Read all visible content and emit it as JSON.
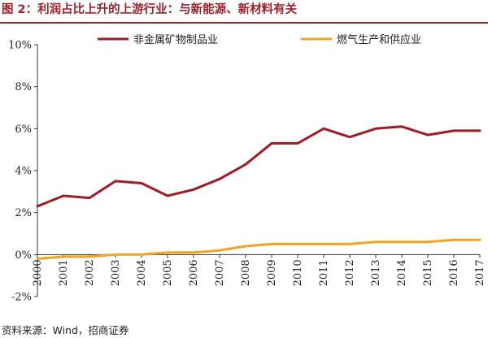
{
  "header": {
    "title": "图 2：利润占比上升的上游行业：与新能源、新材料有关"
  },
  "footer": {
    "source": "资料来源：Wind，招商证券"
  },
  "chart_data": {
    "type": "line",
    "title": "",
    "xlabel": "",
    "ylabel": "",
    "x": [
      "2000",
      "2001",
      "2002",
      "2003",
      "2004",
      "2005",
      "2006",
      "2007",
      "2008",
      "2009",
      "2010",
      "2011",
      "2012",
      "2013",
      "2014",
      "2015",
      "2016",
      "2017"
    ],
    "ylim": [
      -2,
      10
    ],
    "yticks": [
      -2,
      0,
      2,
      4,
      6,
      8,
      10
    ],
    "ytick_labels": [
      "-2%",
      "0%",
      "2%",
      "4%",
      "6%",
      "8%",
      "10%"
    ],
    "grid": false,
    "legend_position": "top",
    "series": [
      {
        "name": "非金属矿物制品业",
        "color": "#a01c25",
        "values": [
          2.3,
          2.8,
          2.7,
          3.5,
          3.4,
          2.8,
          3.1,
          3.6,
          4.3,
          5.3,
          5.3,
          6.0,
          5.6,
          6.0,
          6.1,
          5.7,
          5.9,
          5.9
        ]
      },
      {
        "name": "燃气生产和供应业",
        "color": "#f2a420",
        "values": [
          -0.2,
          -0.1,
          -0.1,
          0.0,
          0.0,
          0.1,
          0.1,
          0.2,
          0.4,
          0.5,
          0.5,
          0.5,
          0.5,
          0.6,
          0.6,
          0.6,
          0.7,
          0.7
        ]
      }
    ]
  }
}
